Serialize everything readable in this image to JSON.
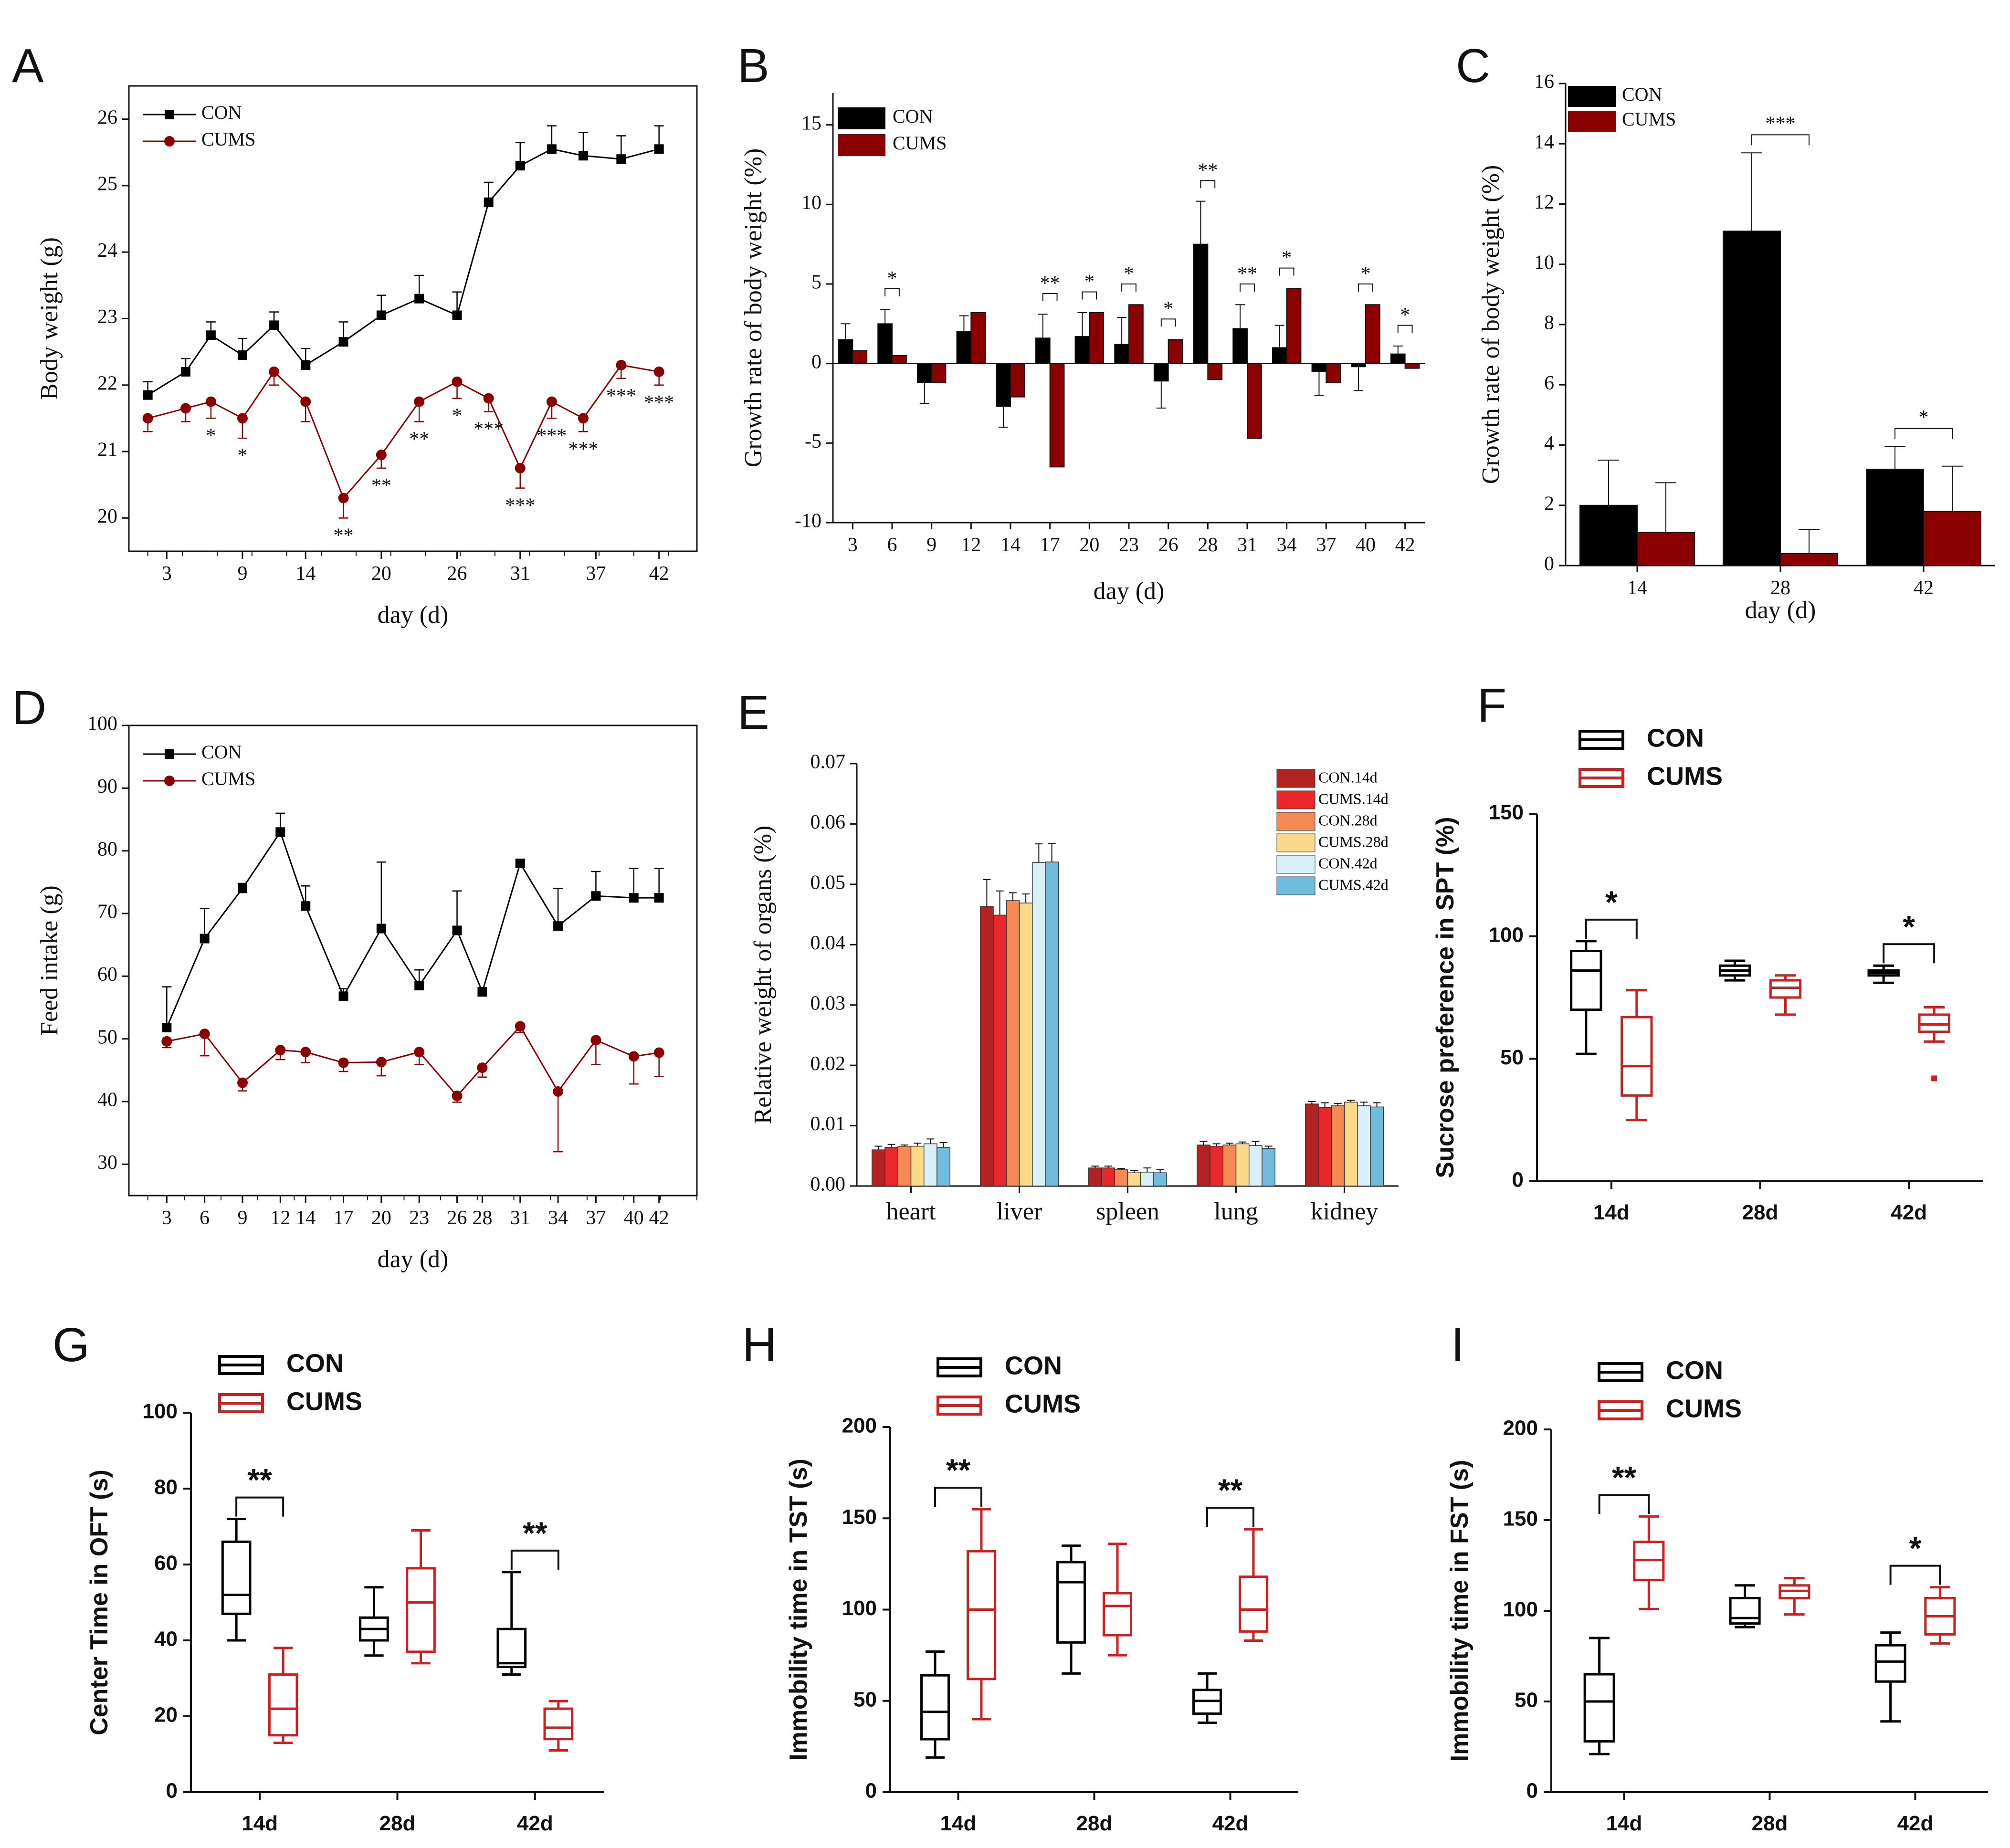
{
  "colors": {
    "con": "#000000",
    "cums": "#8b0000",
    "cums_box": "#cc1f1f",
    "organ_series": [
      "#b22222",
      "#e8282a",
      "#f58a55",
      "#fbd98b",
      "#d9f0f8",
      "#6fbcdc"
    ]
  },
  "chart_data": [
    {
      "id": "A",
      "type": "line",
      "letter": "A",
      "xlabel": "day (d)",
      "ylabel": "Body weight (g)",
      "xlim": [
        0,
        45
      ],
      "ylim": [
        19.5,
        26.5
      ],
      "xticks": [
        3,
        9,
        14,
        20,
        26,
        31,
        37,
        42
      ],
      "yticks": [
        20,
        21,
        22,
        23,
        24,
        25,
        26
      ],
      "x": [
        1.5,
        4.5,
        6.5,
        9,
        11.5,
        14,
        17,
        20,
        23,
        26,
        28.5,
        31,
        33.5,
        36,
        39,
        42
      ],
      "series": [
        {
          "name": "CON",
          "values": [
            21.85,
            22.2,
            22.75,
            22.45,
            22.9,
            22.3,
            22.65,
            23.05,
            23.3,
            23.05,
            24.75,
            25.3,
            25.55,
            25.45,
            25.4,
            25.55
          ],
          "err": [
            0.2,
            0.2,
            0.2,
            0.25,
            0.2,
            0.25,
            0.3,
            0.3,
            0.35,
            0.35,
            0.3,
            0.35,
            0.35,
            0.35,
            0.35,
            0.35
          ]
        },
        {
          "name": "CUMS",
          "values": [
            21.5,
            21.65,
            21.75,
            21.5,
            22.2,
            21.75,
            20.3,
            20.95,
            21.75,
            22.05,
            21.8,
            20.75,
            21.75,
            21.5,
            22.3,
            22.2
          ],
          "err": [
            0.2,
            0.2,
            0.25,
            0.3,
            0.2,
            0.3,
            0.3,
            0.2,
            0.3,
            0.25,
            0.2,
            0.3,
            0.25,
            0.2,
            0.2,
            0.2
          ]
        }
      ],
      "sig": [
        {
          "x": 6.5,
          "label": "*"
        },
        {
          "x": 9,
          "label": "*"
        },
        {
          "x": 17,
          "label": "**"
        },
        {
          "x": 20,
          "label": "**"
        },
        {
          "x": 23,
          "label": "**"
        },
        {
          "x": 26,
          "label": "*"
        },
        {
          "x": 28.5,
          "label": "***"
        },
        {
          "x": 31,
          "label": "***"
        },
        {
          "x": 33.5,
          "label": "***"
        },
        {
          "x": 36,
          "label": "***"
        },
        {
          "x": 39,
          "label": "***"
        },
        {
          "x": 42,
          "label": "***"
        }
      ],
      "legend": [
        "CON",
        "CUMS"
      ]
    },
    {
      "id": "B",
      "type": "bar",
      "letter": "B",
      "xlabel": "day (d)",
      "ylabel": "Growth rate of body weight (%)",
      "ylim": [
        -10,
        17
      ],
      "yticks": [
        -10,
        -5,
        0,
        5,
        10,
        15
      ],
      "categories": [
        "3",
        "6",
        "9",
        "12",
        "14",
        "17",
        "20",
        "23",
        "26",
        "28",
        "31",
        "34",
        "37",
        "40",
        "42"
      ],
      "series": [
        {
          "name": "CON",
          "values": [
            1.5,
            2.5,
            -1.2,
            2.0,
            -2.7,
            1.6,
            1.7,
            1.2,
            -1.1,
            7.5,
            2.2,
            1.0,
            -0.5,
            -0.2,
            0.6
          ],
          "err": [
            1.0,
            0.9,
            1.3,
            1.0,
            1.3,
            1.5,
            1.5,
            1.7,
            1.7,
            2.7,
            1.5,
            1.4,
            1.5,
            1.5,
            0.5
          ]
        },
        {
          "name": "CUMS",
          "values": [
            0.8,
            0.5,
            -1.2,
            3.2,
            -2.1,
            -6.5,
            3.2,
            3.7,
            1.5,
            -1.0,
            -4.7,
            4.7,
            -1.2,
            3.7,
            -0.3
          ]
        }
      ],
      "sig": [
        {
          "cat": "6",
          "label": "*"
        },
        {
          "cat": "17",
          "label": "**"
        },
        {
          "cat": "20",
          "label": "*"
        },
        {
          "cat": "23",
          "label": "*"
        },
        {
          "cat": "26",
          "label": "*"
        },
        {
          "cat": "28",
          "label": "**"
        },
        {
          "cat": "31",
          "label": "**"
        },
        {
          "cat": "34",
          "label": "*"
        },
        {
          "cat": "40",
          "label": "*"
        },
        {
          "cat": "42",
          "label": "*"
        }
      ],
      "legend": [
        "CON",
        "CUMS"
      ]
    },
    {
      "id": "C",
      "type": "bar",
      "letter": "C",
      "xlabel": "day (d)",
      "ylabel": "Growth rate of body weight (%)",
      "ylim": [
        0,
        16
      ],
      "yticks": [
        0,
        2,
        4,
        6,
        8,
        10,
        12,
        14,
        16
      ],
      "categories": [
        "14",
        "28",
        "42"
      ],
      "series": [
        {
          "name": "CON",
          "values": [
            2.0,
            11.1,
            3.2
          ],
          "err": [
            1.5,
            2.6,
            0.75
          ]
        },
        {
          "name": "CUMS",
          "values": [
            1.1,
            0.4,
            1.8
          ],
          "err": [
            1.65,
            0.8,
            1.5
          ]
        }
      ],
      "sig": [
        {
          "cat": "28",
          "label": "***"
        },
        {
          "cat": "42",
          "label": "*"
        }
      ],
      "legend": [
        "CON",
        "CUMS"
      ]
    },
    {
      "id": "D",
      "type": "line",
      "letter": "D",
      "xlabel": "day (d)",
      "ylabel": "Feed intake (g)",
      "xlim": [
        0,
        45
      ],
      "ylim": [
        25,
        100
      ],
      "xticks": [
        3,
        6,
        9,
        12,
        14,
        17,
        20,
        23,
        26,
        28,
        31,
        34,
        37,
        40,
        42
      ],
      "yticks": [
        30,
        40,
        50,
        60,
        70,
        80,
        90,
        100
      ],
      "x": [
        3,
        6,
        9,
        12,
        14,
        17,
        20,
        23,
        26,
        28,
        31,
        34,
        37,
        40,
        42
      ],
      "series": [
        {
          "name": "CON",
          "values": [
            51.8,
            66,
            74,
            83,
            71.2,
            56.8,
            67.6,
            58.5,
            67.3,
            57.5,
            78,
            68,
            72.8,
            72.5,
            72.5
          ],
          "err": [
            6.5,
            4.8,
            0.8,
            3.0,
            3.2,
            1.2,
            10.6,
            2.5,
            6.3,
            0.5,
            0.5,
            6.0,
            3.9,
            4.7,
            4.7
          ]
        },
        {
          "name": "CUMS",
          "values": [
            49.6,
            50.8,
            43,
            48.2,
            47.9,
            46.2,
            46.3,
            47.9,
            40.9,
            45.4,
            52,
            41.6,
            49.8,
            47.2,
            47.8
          ],
          "err": [
            1.0,
            3.5,
            1.3,
            1.5,
            1.7,
            1.4,
            2.2,
            2.0,
            1.0,
            1.5,
            1.0,
            9.6,
            3.9,
            4.4,
            3.8
          ]
        }
      ],
      "legend": [
        "CON",
        "CUMS"
      ]
    },
    {
      "id": "E",
      "type": "bar",
      "letter": "E",
      "xlabel": "",
      "ylabel": "Relative weight of organs (%)",
      "ylim": [
        0,
        0.07
      ],
      "yticks": [
        "0.00",
        "0.01",
        "0.02",
        "0.03",
        "0.04",
        "0.05",
        "0.06",
        "0.07"
      ],
      "categories": [
        "heart",
        "liver",
        "spleen",
        "lung",
        "kidney"
      ],
      "series": [
        {
          "name": "CON.14d",
          "values": [
            0.006,
            0.0463,
            0.003,
            0.0068,
            0.0136
          ],
          "err": [
            0.0006,
            0.0045,
            0.0003,
            0.0006,
            0.0004
          ]
        },
        {
          "name": "CUMS.14d",
          "values": [
            0.0064,
            0.0449,
            0.003,
            0.0066,
            0.013
          ],
          "err": [
            0.0005,
            0.004,
            0.0003,
            0.0004,
            0.0008
          ]
        },
        {
          "name": "CON.28d",
          "values": [
            0.0066,
            0.0473,
            0.0027,
            0.0068,
            0.0133
          ],
          "err": [
            0.0002,
            0.0013,
            0.0002,
            0.0003,
            0.0004
          ]
        },
        {
          "name": "CUMS.28d",
          "values": [
            0.0066,
            0.0469,
            0.0022,
            0.007,
            0.0139
          ],
          "err": [
            0.0005,
            0.0015,
            0.0004,
            0.0003,
            0.0003
          ]
        },
        {
          "name": "CON.42d",
          "values": [
            0.007,
            0.0536,
            0.0023,
            0.0067,
            0.0133
          ],
          "err": [
            0.0008,
            0.0031,
            0.0007,
            0.0007,
            0.0006
          ]
        },
        {
          "name": "CUMS.42d",
          "values": [
            0.0064,
            0.0537,
            0.0022,
            0.0062,
            0.0131
          ],
          "err": [
            0.0008,
            0.0031,
            0.0005,
            0.0004,
            0.0007
          ]
        }
      ],
      "legend": [
        "CON.14d",
        "CUMS.14d",
        "CON.28d",
        "CUMS.28d",
        "CON.42d",
        "CUMS.42d"
      ]
    },
    {
      "id": "F",
      "type": "box",
      "letter": "F",
      "ylabel": "Sucrose preference in SPT (%)",
      "ylim": [
        0,
        150
      ],
      "yticks": [
        0,
        50,
        100,
        150
      ],
      "categories": [
        "14d",
        "28d",
        "42d"
      ],
      "series": [
        {
          "name": "CON",
          "boxes": [
            [
              52,
              70,
              86,
              94,
              98
            ],
            [
              82,
              84,
              86,
              88,
              90
            ],
            [
              81,
              84,
              85,
              86,
              88
            ]
          ]
        },
        {
          "name": "CUMS",
          "boxes": [
            [
              25,
              35,
              47,
              67,
              78
            ],
            [
              68,
              75,
              79,
              82,
              84
            ],
            [
              57,
              61,
              64,
              68,
              71
            ]
          ],
          "outliers": [
            [],
            [],
            [
              42
            ]
          ]
        }
      ],
      "sig": [
        {
          "cat": "14d",
          "label": "*"
        },
        {
          "cat": "42d",
          "label": "*"
        }
      ],
      "legend": [
        "CON",
        "CUMS"
      ]
    },
    {
      "id": "G",
      "type": "box",
      "letter": "G",
      "ylabel": "Center Time in OFT (s)",
      "ylim": [
        0,
        100
      ],
      "yticks": [
        0,
        20,
        40,
        60,
        80,
        100
      ],
      "categories": [
        "14d",
        "28d",
        "42d"
      ],
      "series": [
        {
          "name": "CON",
          "boxes": [
            [
              40,
              47,
              52,
              66,
              72
            ],
            [
              36,
              40,
              43,
              46,
              54
            ],
            [
              31,
              33,
              34,
              43,
              58
            ]
          ]
        },
        {
          "name": "CUMS",
          "boxes": [
            [
              13,
              15,
              22,
              31,
              38
            ],
            [
              34,
              37,
              50,
              59,
              69
            ],
            [
              11,
              14,
              17,
              22,
              24
            ]
          ]
        }
      ],
      "sig": [
        {
          "cat": "14d",
          "label": "**"
        },
        {
          "cat": "42d",
          "label": "**"
        }
      ],
      "legend": [
        "CON",
        "CUMS"
      ]
    },
    {
      "id": "H",
      "type": "box",
      "letter": "H",
      "ylabel": "Immobility time in TST (s)",
      "ylim": [
        0,
        200
      ],
      "yticks": [
        0,
        50,
        100,
        150,
        200
      ],
      "categories": [
        "14d",
        "28d",
        "42d"
      ],
      "series": [
        {
          "name": "CON",
          "boxes": [
            [
              19,
              29,
              44,
              64,
              77
            ],
            [
              65,
              82,
              115,
              126,
              135
            ],
            [
              38,
              43,
              50,
              56,
              65
            ]
          ]
        },
        {
          "name": "CUMS",
          "boxes": [
            [
              40,
              62,
              100,
              132,
              155
            ],
            [
              75,
              86,
              102,
              109,
              136
            ],
            [
              83,
              88,
              100,
              118,
              144
            ]
          ]
        }
      ],
      "sig": [
        {
          "cat": "14d",
          "label": "**"
        },
        {
          "cat": "42d",
          "label": "**"
        }
      ],
      "legend": [
        "CON",
        "CUMS"
      ]
    },
    {
      "id": "I",
      "type": "box",
      "letter": "I",
      "ylabel": "Immobility time in FST (s)",
      "ylim": [
        0,
        200
      ],
      "yticks": [
        0,
        50,
        100,
        150,
        200
      ],
      "categories": [
        "14d",
        "28d",
        "42d"
      ],
      "series": [
        {
          "name": "CON",
          "boxes": [
            [
              21,
              28,
              50,
              65,
              85
            ],
            [
              91,
              93,
              96,
              107,
              114
            ],
            [
              39,
              61,
              72,
              81,
              88
            ]
          ]
        },
        {
          "name": "CUMS",
          "boxes": [
            [
              101,
              117,
              128,
              138,
              152
            ],
            [
              98,
              107,
              111,
              114,
              118
            ],
            [
              82,
              87,
              97,
              107,
              113
            ]
          ]
        }
      ],
      "sig": [
        {
          "cat": "14d",
          "label": "**"
        },
        {
          "cat": "42d",
          "label": "*"
        }
      ],
      "legend": [
        "CON",
        "CUMS"
      ]
    }
  ]
}
